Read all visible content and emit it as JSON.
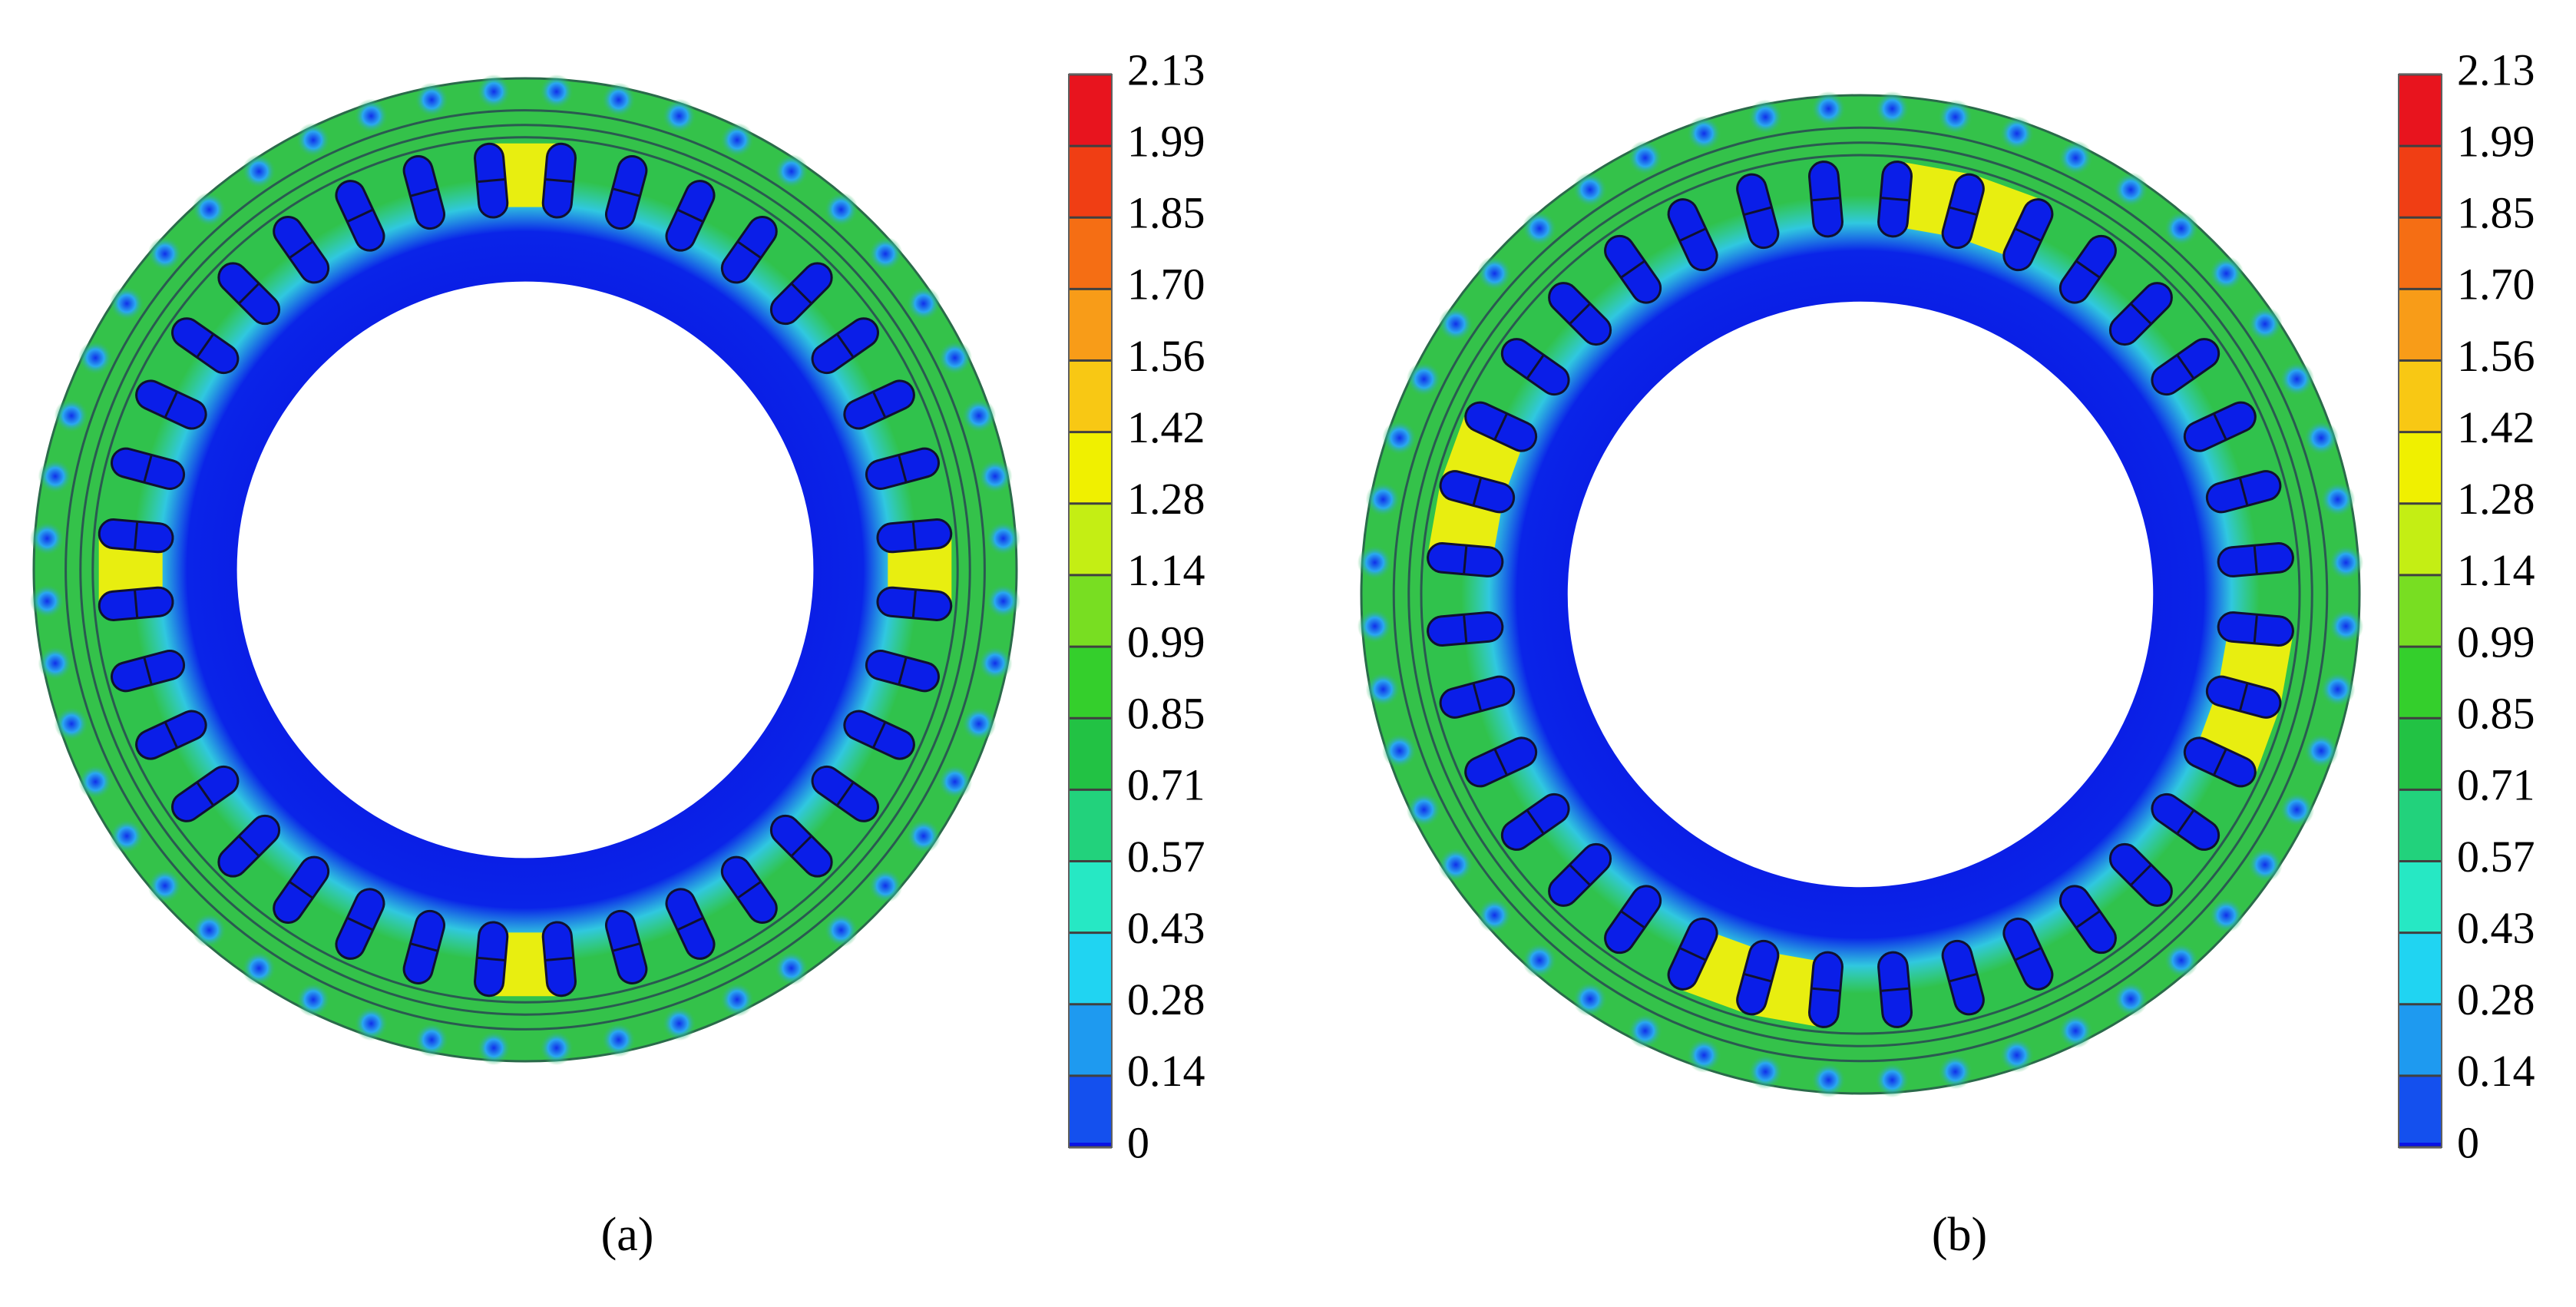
{
  "figure": {
    "colorbar": {
      "colors": [
        "#e8141e",
        "#f03e14",
        "#f56e14",
        "#f89c18",
        "#f8c814",
        "#f0f000",
        "#c4ee14",
        "#78de22",
        "#34cf2c",
        "#22c244",
        "#22d27c",
        "#26e8c4",
        "#20d4f2",
        "#1e9af0",
        "#1450ee",
        "#0a14e6"
      ]
    },
    "panels": [
      {
        "label": "(a)",
        "colorbar_ticks": [
          "2.13",
          "1.99",
          "1.85",
          "1.70",
          "1.56",
          "1.42",
          "1.28",
          "1.14",
          "0.99",
          "0.85",
          "0.71",
          "0.57",
          "0.43",
          "0.28",
          "0.14",
          "0"
        ]
      },
      {
        "label": "(b)",
        "colorbar_ticks": [
          "2.13",
          "1.99",
          "1.85",
          "1.70",
          "1.56",
          "1.42",
          "1.28",
          "1.14",
          "0.99",
          "0.85",
          "0.71",
          "0.57",
          "0.43",
          "0.28",
          "0.14",
          "0"
        ]
      }
    ]
  }
}
